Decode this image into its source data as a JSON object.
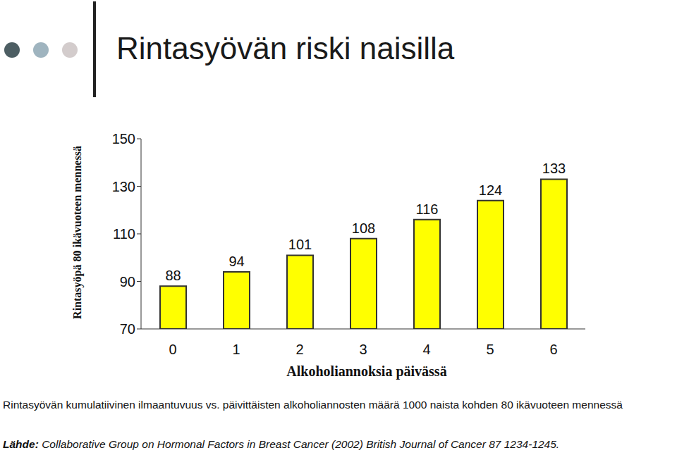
{
  "chart_data": {
    "type": "bar",
    "title": "Rintasyövän riski naisilla",
    "y_label": "Rintasyöpä 80 ikävuoteen mennessä",
    "x_label": "Alkoholiannoksia päivässä",
    "categories": [
      "0",
      "1",
      "2",
      "3",
      "4",
      "5",
      "6"
    ],
    "values": [
      88,
      94,
      101,
      108,
      116,
      124,
      133
    ],
    "color": "#ffff00",
    "ylim": [
      70,
      150
    ],
    "yticks": [
      70,
      90,
      110,
      130,
      150
    ],
    "grid": false,
    "data_labels": true,
    "caption": "Rintasyövän kumulatiivinen ilmaantuvuus vs. päivittäisten alkoholiannosten määrä 1000 naista kohden 80 ikävuoteen mennessä",
    "source": {
      "label": "Lähde:",
      "text": "Collaborative Group on Hormonal Factors in Breast Cancer (2002) British Journal of Cancer 87 1234-1245."
    }
  }
}
